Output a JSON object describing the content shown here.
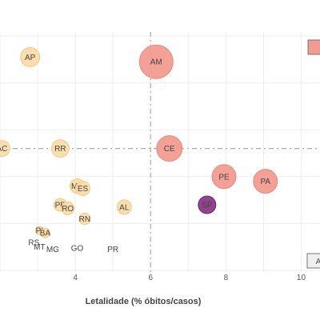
{
  "chart_data": {
    "type": "scatter",
    "xlabel": "Letalidade (% óbitos/casos)",
    "ylabel": "",
    "x_ticks": [
      4,
      6,
      8,
      10
    ],
    "xlim": [
      2.0,
      10.5
    ],
    "ylim": [
      0,
      100
    ],
    "grid": true,
    "reference_lines": {
      "x": 6.0,
      "y": 52
    },
    "colors": {
      "light": "#fbdcaa",
      "light_stroke": "#f3c98a",
      "salmon": "#f29b90",
      "purple": "#8b3a87",
      "label": "#444444",
      "grid": "#eeeeee",
      "reference": "#aaaaaa"
    },
    "points": [
      {
        "label": "AP",
        "x": 2.8,
        "y": 91,
        "size": 12,
        "color": "light"
      },
      {
        "label": "AM",
        "x": 6.15,
        "y": 89,
        "size": 21,
        "color": "salmon"
      },
      {
        "label": "AC",
        "x": 2.05,
        "y": 52,
        "size": 10,
        "color": "light"
      },
      {
        "label": "RR",
        "x": 3.6,
        "y": 52,
        "size": 11,
        "color": "light"
      },
      {
        "label": "CE",
        "x": 6.5,
        "y": 52,
        "size": 16,
        "color": "salmon"
      },
      {
        "label": "PE",
        "x": 7.95,
        "y": 40,
        "size": 15,
        "color": "salmon"
      },
      {
        "label": "PA",
        "x": 9.05,
        "y": 38,
        "size": 15,
        "color": "salmon"
      },
      {
        "label": "MA",
        "x": 4.05,
        "y": 36,
        "size": 9,
        "color": "light"
      },
      {
        "label": "ES",
        "x": 4.2,
        "y": 35,
        "size": 9,
        "color": "light"
      },
      {
        "label": "SP",
        "x": 7.5,
        "y": 28,
        "size": 11,
        "color": "purple"
      },
      {
        "label": "PB",
        "x": 3.6,
        "y": 28,
        "size": 8,
        "color": "light"
      },
      {
        "label": "RO",
        "x": 3.8,
        "y": 26.5,
        "size": 8,
        "color": "light"
      },
      {
        "label": "AL",
        "x": 5.3,
        "y": 27,
        "size": 9,
        "color": "light"
      },
      {
        "label": "RN",
        "x": 4.25,
        "y": 22,
        "size": 7,
        "color": "light"
      },
      {
        "label": "PI",
        "x": 3.05,
        "y": 17,
        "size": 5,
        "color": "light"
      },
      {
        "label": "BA",
        "x": 3.2,
        "y": 16,
        "size": 6,
        "color": "light"
      },
      {
        "label": "RS",
        "x": 2.9,
        "y": 12,
        "size": 0,
        "color": "light"
      },
      {
        "label": "MT",
        "x": 3.05,
        "y": 10,
        "size": 0,
        "color": "light"
      },
      {
        "label": "MG",
        "x": 3.4,
        "y": 9,
        "size": 0,
        "color": "light"
      },
      {
        "label": "GO",
        "x": 4.05,
        "y": 9.5,
        "size": 0,
        "color": "light"
      },
      {
        "label": "PR",
        "x": 5.0,
        "y": 9,
        "size": 0,
        "color": "light"
      }
    ]
  },
  "legend": {
    "top_marker_color": "#f29b90",
    "bottom_marker_text": "A"
  }
}
